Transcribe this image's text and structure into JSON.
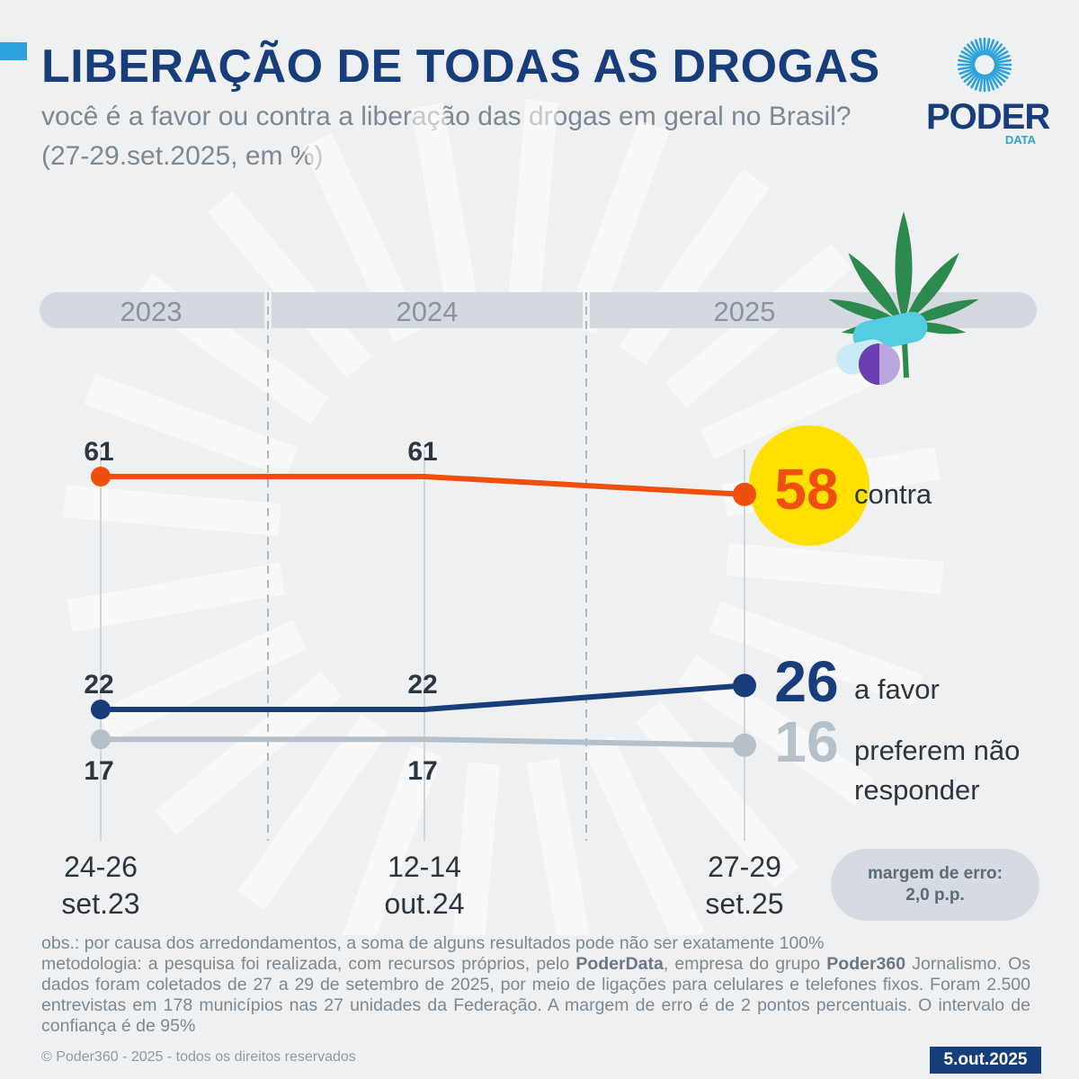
{
  "header": {
    "title": "LIBERAÇÃO DE TODAS AS DROGAS",
    "subtitle": "você é a favor ou contra a liberação das drogas em geral no Brasil? (27-29.set.2025, em %)"
  },
  "logo": {
    "word": "PODER",
    "sub": "DATA"
  },
  "chart_data": {
    "type": "line",
    "years": [
      "2023",
      "2024",
      "2025"
    ],
    "x_labels": [
      [
        "24-26",
        "set.23"
      ],
      [
        "12-14",
        "out.24"
      ],
      [
        "27-29",
        "set.25"
      ]
    ],
    "series": [
      {
        "name": "contra",
        "label_lines": [
          "contra"
        ],
        "values": [
          61,
          61,
          58
        ],
        "color": "#f04e0c"
      },
      {
        "name": "a favor",
        "label_lines": [
          "a favor"
        ],
        "values": [
          22,
          22,
          26
        ],
        "color": "#173d7a"
      },
      {
        "name": "preferem não responder",
        "label_lines": [
          "preferem não",
          "responder"
        ],
        "values": [
          17,
          17,
          16
        ],
        "color": "#b6c0c8"
      }
    ],
    "highlight_color": "#ffe000"
  },
  "margin_of_error": {
    "line1": "margem de erro:",
    "line2": "2,0 p.p."
  },
  "footer": {
    "obs_line": "obs.: por causa dos arredondamentos, a soma de alguns resultados pode não ser exatamente 100%",
    "method_prefix": "metodologia: a pesquisa foi realizada, com recursos próprios, pelo ",
    "method_brand1": "PoderData",
    "method_mid": ", empresa do grupo ",
    "method_brand2": "Poder360",
    "method_rest": " Jornalismo. Os dados foram coletados de 27 a 29 de setembro de 2025, por meio de ligações para celulares e telefones fixos. Foram 2.500 entrevistas em 178 municípios nas 27 unidades da Federação. A margem de erro é de 2 pontos percentuais. O intervalo de confiança é de 95%",
    "copyright": "© Poder360 - 2025 - todos os direitos reservados",
    "date": "5.out.2025"
  }
}
